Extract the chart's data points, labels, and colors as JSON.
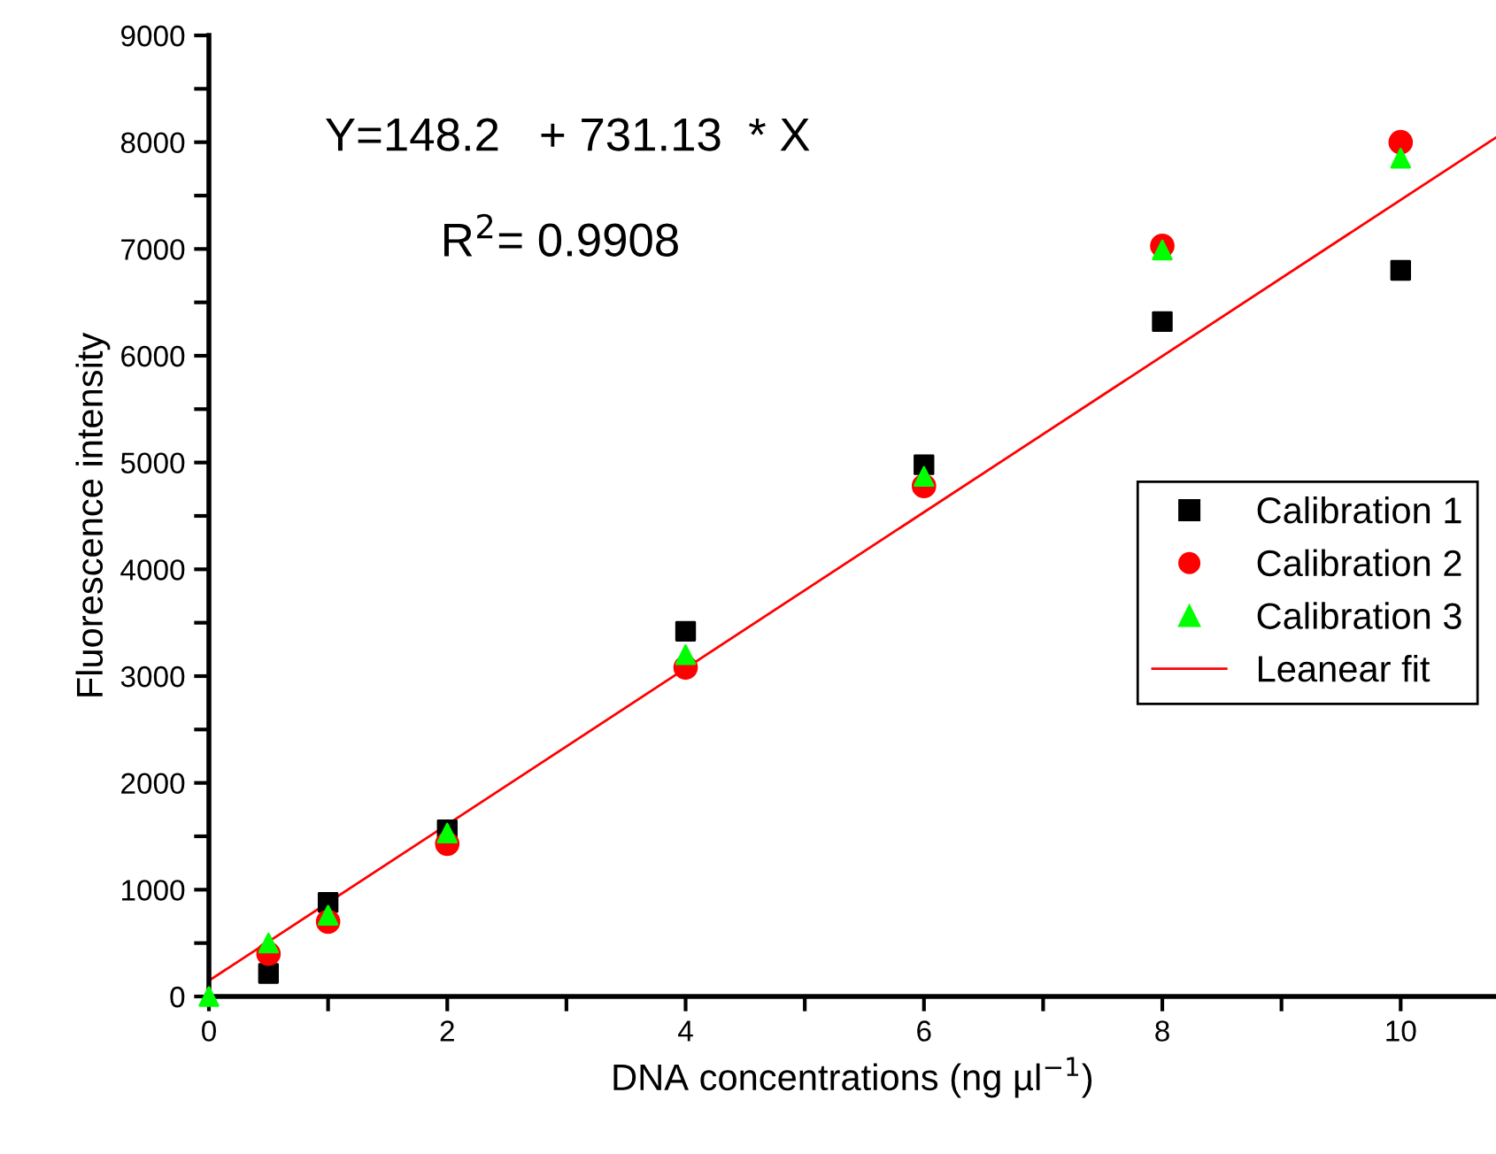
{
  "chart_data": {
    "type": "scatter",
    "xlabel": "DNA concentrations (ng µl$^{−1}$)",
    "ylabel": "Fluorescence intensity",
    "annotations": [
      "Y=148.2   + 731.13  * X",
      "R$^{2}$= 0.9908"
    ],
    "xlim": [
      0,
      10.8
    ],
    "ylim": [
      0,
      9000
    ],
    "xticks": [
      0,
      {
        "value": 1,
        "label": null
      },
      2,
      {
        "value": 3,
        "label": null
      },
      4,
      {
        "value": 5,
        "label": null
      },
      6,
      {
        "value": 7,
        "label": null
      },
      8,
      {
        "value": 9,
        "label": null
      },
      10
    ],
    "yticks": [
      0,
      {
        "value": 500,
        "label": null
      },
      1000,
      {
        "value": 1500,
        "label": null
      },
      2000,
      {
        "value": 2500,
        "label": null
      },
      3000,
      {
        "value": 3500,
        "label": null
      },
      4000,
      {
        "value": 4500,
        "label": null
      },
      5000,
      {
        "value": 5500,
        "label": null
      },
      6000,
      {
        "value": 6500,
        "label": null
      },
      7000,
      {
        "value": 7500,
        "label": null
      },
      8000,
      {
        "value": 8500,
        "label": null
      },
      9000
    ],
    "grid": false,
    "legend": "right",
    "x": [
      0,
      0.5,
      1,
      2,
      4,
      6,
      8,
      10
    ],
    "series": [
      {
        "name": "Calibration 1",
        "color": "#000000",
        "marker": "square",
        "values": [
          null,
          215,
          880,
          1560,
          3420,
          4980,
          6320,
          6800
        ]
      },
      {
        "name": "Calibration 2",
        "color": "#ff0000",
        "marker": "circle",
        "values": [
          null,
          400,
          700,
          1430,
          3080,
          4780,
          7030,
          8000
        ]
      },
      {
        "name": "Calibration 3",
        "color": "#00ff00",
        "marker": "triangle",
        "values": [
          0,
          500,
          760,
          1530,
          3200,
          4870,
          6990,
          7850
        ]
      },
      {
        "name": "Leanear fit",
        "type": "line",
        "color": "#ff0000",
        "marker": "none",
        "line_style": "solid",
        "x": [
          0,
          10.8
        ],
        "values": [
          148.2,
          8044.4
        ]
      }
    ]
  }
}
